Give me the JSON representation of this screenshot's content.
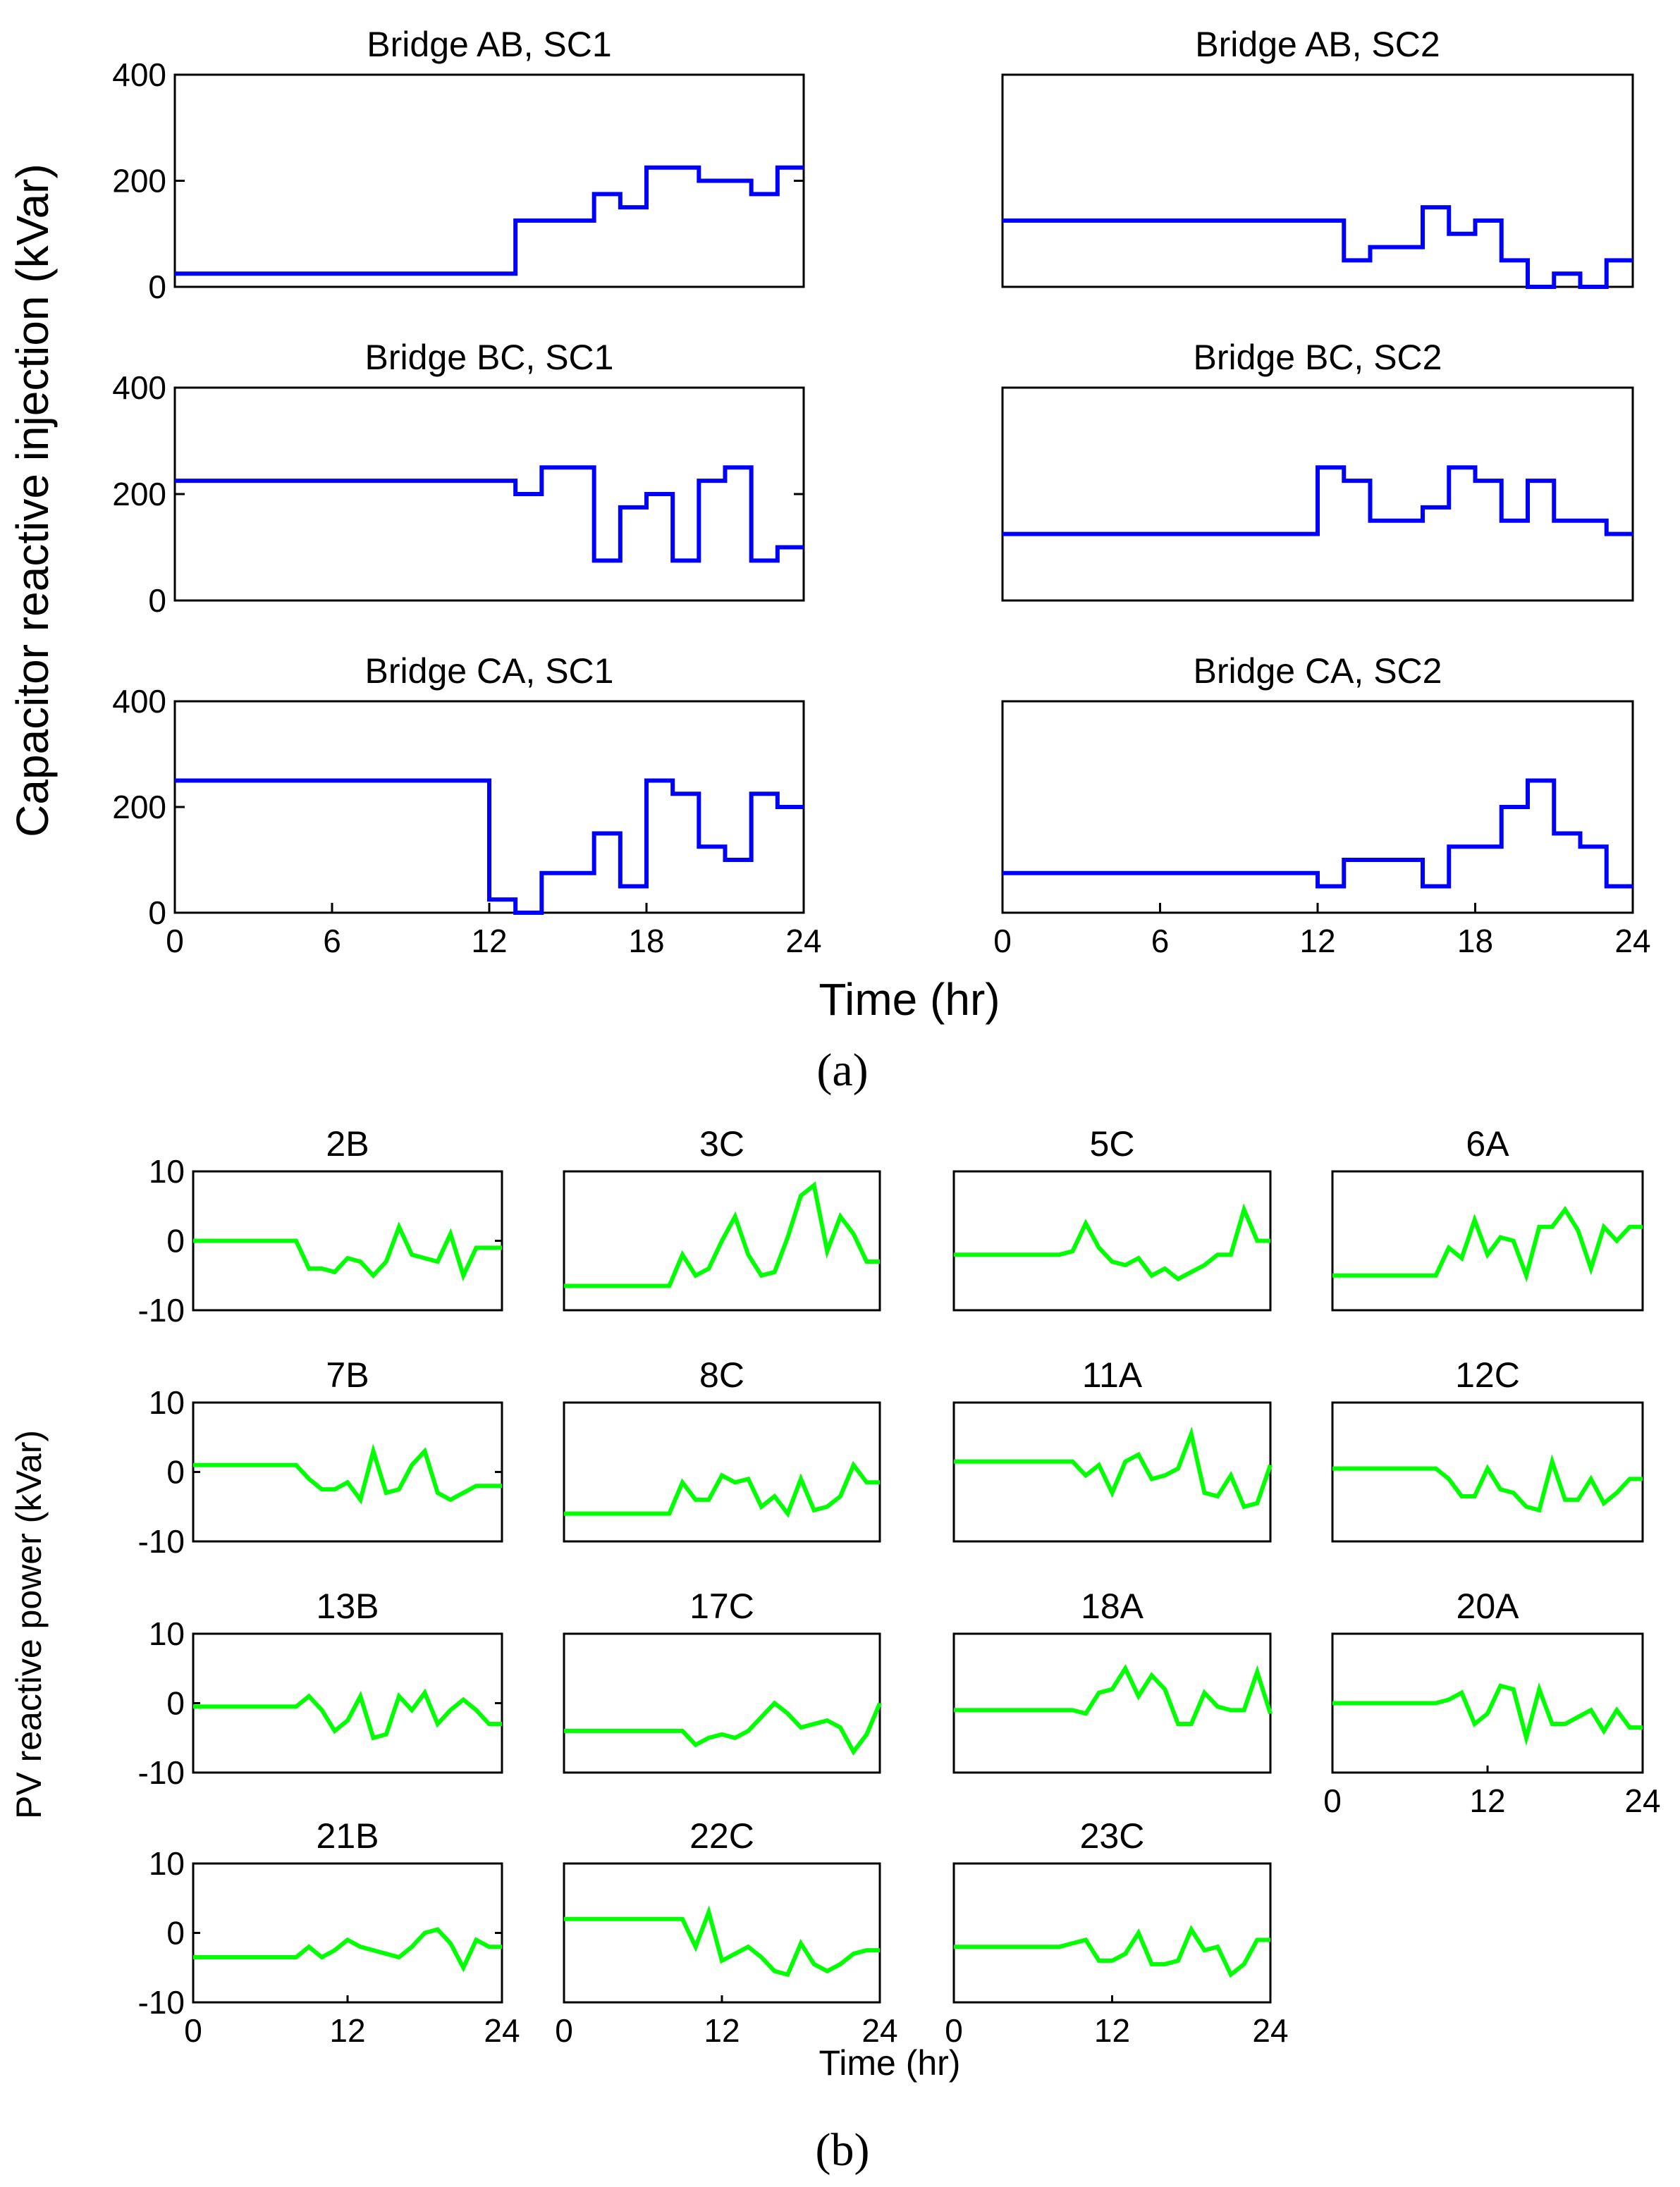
{
  "chart_data": [
    {
      "panel": "a",
      "type": "line",
      "step": true,
      "caption": "(a)",
      "ylabel": "Capacitor reactive injection (kVar)",
      "xlabel": "Time (hr)",
      "xlim": [
        0,
        24
      ],
      "ylim": [
        0,
        400
      ],
      "xticks": [
        0,
        6,
        12,
        18,
        24
      ],
      "yticks": [
        0,
        200,
        400
      ],
      "x": [
        0,
        1,
        2,
        3,
        4,
        5,
        6,
        7,
        8,
        9,
        10,
        11,
        12,
        13,
        14,
        15,
        16,
        17,
        18,
        19,
        20,
        21,
        22,
        23,
        24
      ],
      "color": "#0000ff",
      "subplots": [
        {
          "title": "Bridge AB, SC1",
          "values": [
            25,
            25,
            25,
            25,
            25,
            25,
            25,
            25,
            25,
            25,
            25,
            25,
            25,
            125,
            125,
            125,
            175,
            150,
            225,
            225,
            200,
            200,
            175,
            225,
            225
          ]
        },
        {
          "title": "Bridge AB, SC2",
          "values": [
            125,
            125,
            125,
            125,
            125,
            125,
            125,
            125,
            125,
            125,
            125,
            125,
            125,
            50,
            75,
            75,
            150,
            100,
            125,
            50,
            0,
            25,
            0,
            50,
            50
          ]
        },
        {
          "title": "Bridge BC, SC1",
          "values": [
            225,
            225,
            225,
            225,
            225,
            225,
            225,
            225,
            225,
            225,
            225,
            225,
            225,
            200,
            250,
            250,
            75,
            175,
            200,
            75,
            225,
            250,
            75,
            100,
            100
          ]
        },
        {
          "title": "Bridge BC, SC2",
          "values": [
            125,
            125,
            125,
            125,
            125,
            125,
            125,
            125,
            125,
            125,
            125,
            125,
            250,
            225,
            150,
            150,
            175,
            250,
            225,
            150,
            225,
            150,
            150,
            125,
            125
          ]
        },
        {
          "title": "Bridge CA, SC1",
          "values": [
            250,
            250,
            250,
            250,
            250,
            250,
            250,
            250,
            250,
            250,
            250,
            250,
            25,
            0,
            75,
            75,
            150,
            50,
            250,
            225,
            125,
            100,
            225,
            200,
            200
          ]
        },
        {
          "title": "Bridge CA, SC2",
          "values": [
            75,
            75,
            75,
            75,
            75,
            75,
            75,
            75,
            75,
            75,
            75,
            75,
            50,
            100,
            100,
            100,
            50,
            125,
            125,
            200,
            250,
            150,
            125,
            50,
            50
          ]
        }
      ]
    },
    {
      "panel": "b",
      "type": "line",
      "caption": "(b)",
      "ylabel": "PV reactive power (kVar)",
      "xlabel": "Time (hr)",
      "xlim": [
        0,
        24
      ],
      "ylim": [
        -10,
        10
      ],
      "xticks": [
        0,
        12,
        24
      ],
      "yticks": [
        10,
        0,
        -10
      ],
      "x": [
        0,
        1,
        2,
        3,
        4,
        5,
        6,
        7,
        8,
        9,
        10,
        11,
        12,
        13,
        14,
        15,
        16,
        17,
        18,
        19,
        20,
        21,
        22,
        23,
        24
      ],
      "color": "#00ff00",
      "subplots": [
        {
          "title": "2B",
          "values": [
            0,
            0,
            0,
            0,
            0,
            0,
            0,
            0,
            0,
            -4,
            -4,
            -4.5,
            -2.5,
            -3,
            -5,
            -3,
            2,
            -2,
            -2.5,
            -3,
            1,
            -5,
            -1,
            -1,
            -1
          ]
        },
        {
          "title": "3C",
          "values": [
            -6.5,
            -6.5,
            -6.5,
            -6.5,
            -6.5,
            -6.5,
            -6.5,
            -6.5,
            -6.5,
            -2,
            -5,
            -4,
            0,
            3.5,
            -2,
            -5,
            -4.5,
            0.5,
            6.5,
            8,
            -1.5,
            3.5,
            1,
            -3,
            -3
          ]
        },
        {
          "title": "5C",
          "values": [
            -2,
            -2,
            -2,
            -2,
            -2,
            -2,
            -2,
            -2,
            -2,
            -1.5,
            2.5,
            -1,
            -3,
            -3.5,
            -2.5,
            -5,
            -4,
            -5.5,
            -4.5,
            -3.5,
            -2,
            -2,
            4.5,
            0,
            0
          ]
        },
        {
          "title": "6A",
          "values": [
            -5,
            -5,
            -5,
            -5,
            -5,
            -5,
            -5,
            -5,
            -5,
            -1,
            -2.5,
            3,
            -2,
            0.5,
            0,
            -5,
            2,
            2,
            4.5,
            1.5,
            -4,
            2,
            0,
            2,
            2
          ]
        },
        {
          "title": "7B",
          "values": [
            1,
            1,
            1,
            1,
            1,
            1,
            1,
            1,
            1,
            -1,
            -2.5,
            -2.5,
            -1.5,
            -4,
            3,
            -3,
            -2.5,
            1,
            3,
            -3,
            -4,
            -3,
            -2,
            -2,
            -2
          ]
        },
        {
          "title": "8C",
          "values": [
            -6,
            -6,
            -6,
            -6,
            -6,
            -6,
            -6,
            -6,
            -6,
            -1.5,
            -4,
            -4,
            -0.5,
            -1.5,
            -1,
            -5,
            -3.5,
            -6,
            -1,
            -5.5,
            -5,
            -3.5,
            1,
            -1.5,
            -1.5
          ]
        },
        {
          "title": "11A",
          "values": [
            1.5,
            1.5,
            1.5,
            1.5,
            1.5,
            1.5,
            1.5,
            1.5,
            1.5,
            1.5,
            -0.5,
            1,
            -3,
            1.5,
            2.5,
            -1,
            -0.5,
            0.5,
            5.5,
            -3,
            -3.5,
            -0.5,
            -5,
            -4.5,
            1
          ]
        },
        {
          "title": "12C",
          "values": [
            0.5,
            0.5,
            0.5,
            0.5,
            0.5,
            0.5,
            0.5,
            0.5,
            0.5,
            -1,
            -3.5,
            -3.5,
            0.5,
            -2.5,
            -3,
            -5,
            -5.5,
            1.5,
            -4,
            -4,
            -1,
            -4.5,
            -3,
            -1,
            -1
          ]
        },
        {
          "title": "13B",
          "values": [
            -0.5,
            -0.5,
            -0.5,
            -0.5,
            -0.5,
            -0.5,
            -0.5,
            -0.5,
            -0.5,
            1,
            -1,
            -4,
            -2.5,
            1,
            -5,
            -4.5,
            1,
            -1,
            1.5,
            -3,
            -1,
            0.5,
            -1,
            -3,
            -3
          ]
        },
        {
          "title": "17C",
          "values": [
            -4,
            -4,
            -4,
            -4,
            -4,
            -4,
            -4,
            -4,
            -4,
            -4,
            -6,
            -5,
            -4.5,
            -5,
            -4,
            -2,
            0,
            -1.5,
            -3.5,
            -3,
            -2.5,
            -3.5,
            -7,
            -4.5,
            0
          ]
        },
        {
          "title": "18A",
          "values": [
            -1,
            -1,
            -1,
            -1,
            -1,
            -1,
            -1,
            -1,
            -1,
            -1,
            -1.5,
            1.5,
            2,
            5,
            1,
            4,
            2,
            -3,
            -3,
            1.5,
            -0.5,
            -1,
            -1,
            4.5,
            -1.5
          ]
        },
        {
          "title": "20A",
          "values": [
            0,
            0,
            0,
            0,
            0,
            0,
            0,
            0,
            0,
            0.5,
            1.5,
            -3,
            -1.5,
            2.5,
            2,
            -5,
            2,
            -3,
            -3,
            -2,
            -1,
            -4,
            -1,
            -3.5,
            -3.5
          ]
        },
        {
          "title": "21B",
          "values": [
            -3.5,
            -3.5,
            -3.5,
            -3.5,
            -3.5,
            -3.5,
            -3.5,
            -3.5,
            -3.5,
            -2,
            -3.5,
            -2.5,
            -1,
            -2,
            -2.5,
            -3,
            -3.5,
            -2,
            0,
            0.5,
            -1.5,
            -5,
            -1,
            -2,
            -2
          ]
        },
        {
          "title": "22C",
          "values": [
            2,
            2,
            2,
            2,
            2,
            2,
            2,
            2,
            2,
            2,
            -2,
            3,
            -4,
            -3,
            -2,
            -3.5,
            -5.5,
            -6,
            -1.5,
            -4.5,
            -5.5,
            -4.5,
            -3,
            -2.5,
            -2.5
          ]
        },
        {
          "title": "23C",
          "values": [
            -2,
            -2,
            -2,
            -2,
            -2,
            -2,
            -2,
            -2,
            -2,
            -1.5,
            -1,
            -4,
            -4,
            -3,
            0,
            -4.5,
            -4.5,
            -4,
            0.5,
            -2.5,
            -2,
            -6,
            -4.5,
            -1,
            -1
          ]
        }
      ]
    }
  ]
}
